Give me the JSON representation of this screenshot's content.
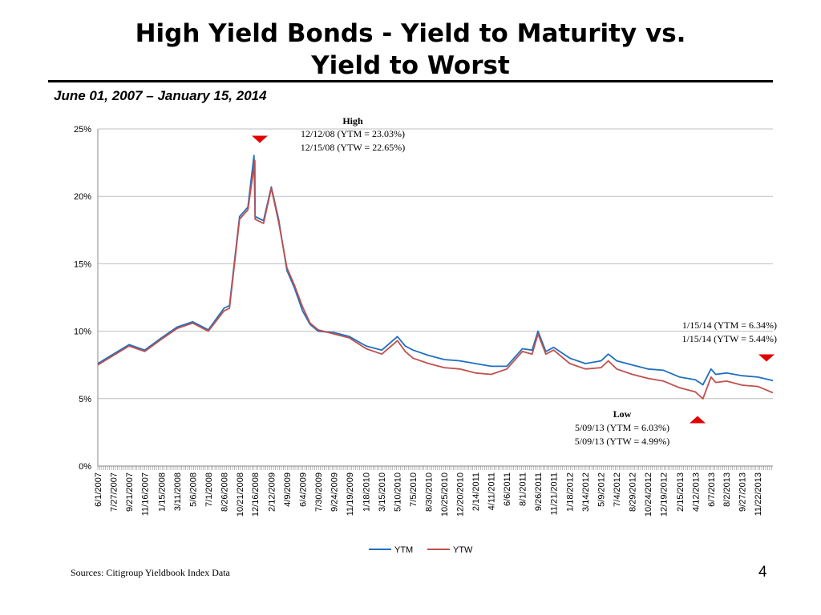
{
  "slide": {
    "title_line1": "High Yield Bonds - Yield to Maturity vs.",
    "title_line2": "Yield to Worst",
    "subtitle": "June 01, 2007 – January 15, 2014",
    "source": "Sources: Citigroup Yieldbook Index Data",
    "page_number": "4"
  },
  "annotations": {
    "high": {
      "heading": "High",
      "line1": "12/12/08 (YTM = 23.03%)",
      "line2": "12/15/08 (YTW = 22.65%)"
    },
    "last": {
      "line1": "1/15/14 (YTM = 6.34%)",
      "line2": "1/15/14 (YTW = 5.44%)"
    },
    "low": {
      "heading": "Low",
      "line1": "5/09/13 (YTM = 6.03%)",
      "line2": "5/09/13 (YTW = 4.99%)"
    }
  },
  "colors": {
    "ytm": "#1f6fc0",
    "ytw": "#c0504d",
    "marker": "#e00000",
    "grid": "#bfbfbf"
  },
  "chart_data": {
    "type": "line",
    "title": "",
    "xlabel": "",
    "ylabel": "",
    "ylim": [
      0,
      25
    ],
    "yticks": [
      0,
      5,
      10,
      15,
      20,
      25
    ],
    "ytick_labels": [
      "0%",
      "5%",
      "10%",
      "15%",
      "20%",
      "25%"
    ],
    "grid": true,
    "legend": "bottom",
    "x_tick_labels": [
      "6/1/2007",
      "7/27/2007",
      "9/21/2007",
      "11/16/2007",
      "1/15/2008",
      "3/11/2008",
      "5/6/2008",
      "7/1/2008",
      "8/26/2008",
      "10/21/2008",
      "12/16/2008",
      "2/12/2009",
      "4/9/2009",
      "6/4/2009",
      "7/30/2009",
      "9/24/2009",
      "11/19/2009",
      "1/18/2010",
      "3/15/2010",
      "5/10/2010",
      "7/5/2010",
      "8/30/2010",
      "10/25/2010",
      "12/20/2010",
      "2/14/2011",
      "4/11/2011",
      "6/6/2011",
      "8/1/2011",
      "9/26/2011",
      "11/21/2011",
      "1/18/2012",
      "3/14/2012",
      "5/9/2012",
      "7/4/2012",
      "8/29/2012",
      "10/24/2012",
      "12/19/2012",
      "2/15/2013",
      "4/12/2013",
      "6/7/2013",
      "8/2/2013",
      "9/27/2013",
      "11/22/2013"
    ],
    "x_range": [
      "6/1/2007",
      "1/15/2014"
    ],
    "series": [
      {
        "name": "YTM",
        "x": [
          "6/1/2007",
          "7/27/2007",
          "9/21/2007",
          "11/16/2007",
          "1/15/2008",
          "3/11/2008",
          "5/6/2008",
          "7/1/2008",
          "8/26/2008",
          "9/15/2008",
          "10/21/2008",
          "11/20/2008",
          "12/12/2008",
          "12/16/2008",
          "1/15/2009",
          "2/12/2009",
          "3/10/2009",
          "4/9/2009",
          "5/6/2009",
          "6/4/2009",
          "7/1/2009",
          "7/30/2009",
          "9/24/2009",
          "11/19/2009",
          "1/18/2010",
          "3/15/2010",
          "5/10/2010",
          "6/7/2010",
          "7/5/2010",
          "8/30/2010",
          "10/25/2010",
          "12/20/2010",
          "2/14/2011",
          "4/11/2011",
          "6/6/2011",
          "8/1/2011",
          "9/5/2011",
          "9/26/2011",
          "10/24/2011",
          "11/21/2011",
          "1/18/2012",
          "3/14/2012",
          "5/9/2012",
          "6/4/2012",
          "7/4/2012",
          "8/29/2012",
          "10/24/2012",
          "12/19/2012",
          "2/15/2013",
          "4/12/2013",
          "5/9/2013",
          "6/7/2013",
          "6/24/2013",
          "8/2/2013",
          "9/27/2013",
          "11/22/2013",
          "1/15/2014"
        ],
        "values": [
          7.6,
          8.3,
          9.0,
          8.6,
          9.5,
          10.3,
          10.7,
          10.1,
          11.7,
          11.9,
          18.5,
          19.2,
          23.03,
          18.5,
          18.2,
          20.7,
          18.3,
          14.5,
          13.2,
          11.5,
          10.5,
          10.0,
          9.9,
          9.6,
          8.9,
          8.6,
          9.6,
          8.9,
          8.6,
          8.2,
          7.9,
          7.8,
          7.6,
          7.4,
          7.4,
          8.7,
          8.6,
          10.0,
          8.5,
          8.8,
          8.0,
          7.6,
          7.8,
          8.3,
          7.8,
          7.5,
          7.2,
          7.1,
          6.6,
          6.4,
          6.03,
          7.2,
          6.8,
          6.9,
          6.7,
          6.6,
          6.34
        ]
      },
      {
        "name": "YTW",
        "x": [
          "6/1/2007",
          "7/27/2007",
          "9/21/2007",
          "11/16/2007",
          "1/15/2008",
          "3/11/2008",
          "5/6/2008",
          "7/1/2008",
          "8/26/2008",
          "9/15/2008",
          "10/21/2008",
          "11/20/2008",
          "12/15/2008",
          "12/16/2008",
          "1/15/2009",
          "2/12/2009",
          "3/10/2009",
          "4/9/2009",
          "5/6/2009",
          "6/4/2009",
          "7/1/2009",
          "7/30/2009",
          "9/24/2009",
          "11/19/2009",
          "1/18/2010",
          "3/15/2010",
          "5/10/2010",
          "6/7/2010",
          "7/5/2010",
          "8/30/2010",
          "10/25/2010",
          "12/20/2010",
          "2/14/2011",
          "4/11/2011",
          "6/6/2011",
          "8/1/2011",
          "9/5/2011",
          "9/26/2011",
          "10/24/2011",
          "11/21/2011",
          "1/18/2012",
          "3/14/2012",
          "5/9/2012",
          "6/4/2012",
          "7/4/2012",
          "8/29/2012",
          "10/24/2012",
          "12/19/2012",
          "2/15/2013",
          "4/12/2013",
          "5/9/2013",
          "6/7/2013",
          "6/24/2013",
          "8/2/2013",
          "9/27/2013",
          "11/22/2013",
          "1/15/2014"
        ],
        "values": [
          7.5,
          8.2,
          8.9,
          8.5,
          9.4,
          10.2,
          10.6,
          10.0,
          11.5,
          11.7,
          18.3,
          19.0,
          22.65,
          18.3,
          18.0,
          20.6,
          18.1,
          14.7,
          13.4,
          11.8,
          10.6,
          10.1,
          9.8,
          9.5,
          8.7,
          8.3,
          9.3,
          8.5,
          8.0,
          7.6,
          7.3,
          7.2,
          6.9,
          6.8,
          7.2,
          8.5,
          8.3,
          9.8,
          8.3,
          8.6,
          7.6,
          7.2,
          7.3,
          7.8,
          7.2,
          6.8,
          6.5,
          6.3,
          5.8,
          5.5,
          4.99,
          6.6,
          6.2,
          6.3,
          6.0,
          5.9,
          5.44
        ]
      }
    ]
  }
}
